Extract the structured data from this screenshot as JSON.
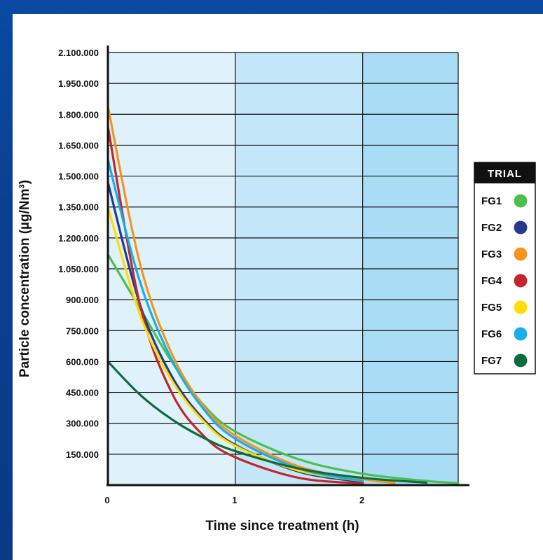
{
  "chart_data": {
    "type": "line",
    "title": "",
    "xlabel": "Time since treatment (h)",
    "ylabel": "Particle concentration (µg/Nm³)",
    "xlim": [
      0,
      2.75
    ],
    "ylim": [
      0,
      2100000
    ],
    "x_ticks": [
      "0",
      "1",
      "2"
    ],
    "y_ticks": [
      "150.000",
      "300.000",
      "450.000",
      "600.000",
      "750.000",
      "900.000",
      "1.050.000",
      "1.200.000",
      "1.350.000",
      "1.500.000",
      "1.650.000",
      "1.800.000",
      "1.950.000",
      "2.100.000"
    ],
    "shaded_regions": [
      {
        "from": 0,
        "to": 1,
        "color": "#dff2fb"
      },
      {
        "from": 1,
        "to": 2,
        "color": "#c3e6f8"
      },
      {
        "from": 2,
        "to": 2.75,
        "color": "#a9dcf5"
      }
    ],
    "legend": {
      "title": "TRIAL",
      "position": "right"
    },
    "series": [
      {
        "name": "FG1",
        "color": "#4cbf4f",
        "x": [
          0,
          0.25,
          0.5,
          0.75,
          1,
          1.5,
          2,
          2.5,
          2.75
        ],
        "y": [
          1120000,
          860000,
          600000,
          390000,
          260000,
          125000,
          55000,
          20000,
          10000
        ]
      },
      {
        "name": "FG2",
        "color": "#233a8e",
        "x": [
          0,
          0.25,
          0.5,
          0.75,
          1,
          1.5,
          2
        ],
        "y": [
          1470000,
          880000,
          530000,
          320000,
          195000,
          65000,
          15000
        ]
      },
      {
        "name": "FG3",
        "color": "#f7941d",
        "x": [
          0,
          0.25,
          0.5,
          0.75,
          1,
          1.5,
          2,
          2.25
        ],
        "y": [
          1840000,
          1080000,
          640000,
          385000,
          240000,
          90000,
          30000,
          10000
        ]
      },
      {
        "name": "FG4",
        "color": "#c1272d",
        "x": [
          0,
          0.25,
          0.5,
          0.75,
          1,
          1.5,
          2
        ],
        "y": [
          1740000,
          880000,
          450000,
          240000,
          135000,
          35000,
          8000
        ]
      },
      {
        "name": "FG5",
        "color": "#ffdd00",
        "x": [
          0,
          0.25,
          0.5,
          0.75,
          1,
          1.5,
          2
        ],
        "y": [
          1350000,
          830000,
          510000,
          310000,
          190000,
          70000,
          20000
        ]
      },
      {
        "name": "FG6",
        "color": "#18aee8",
        "x": [
          0,
          0.25,
          0.5,
          0.75,
          1,
          1.5,
          2
        ],
        "y": [
          1580000,
          990000,
          610000,
          370000,
          225000,
          80000,
          20000
        ]
      },
      {
        "name": "FG7",
        "color": "#0d6b3b",
        "x": [
          0,
          0.25,
          0.5,
          0.75,
          1,
          1.5,
          2,
          2.5
        ],
        "y": [
          600000,
          440000,
          320000,
          230000,
          165000,
          80000,
          35000,
          12000
        ]
      }
    ]
  }
}
